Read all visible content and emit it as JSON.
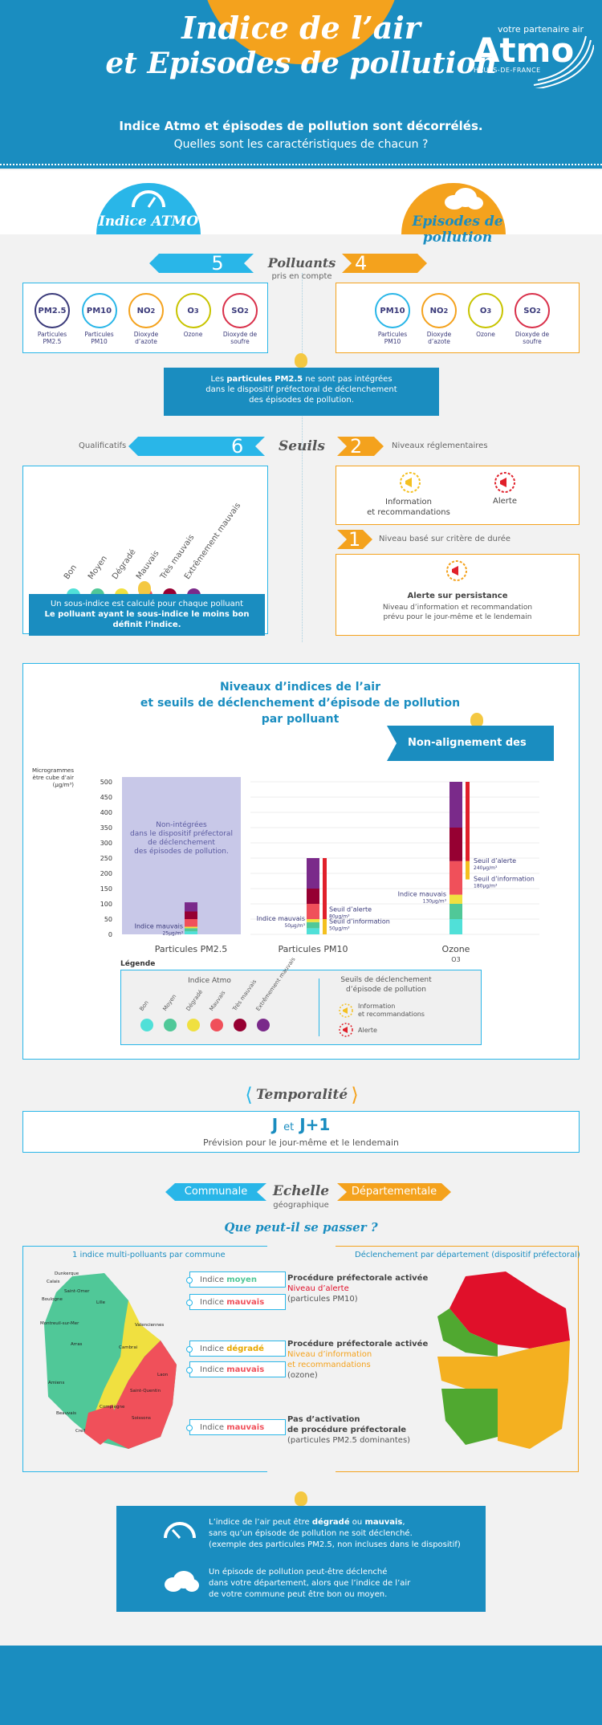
{
  "header": {
    "title_line1": "Indice de l’air",
    "title_line2": "et Episodes de pollution",
    "logo_tag": "votre partenaire air",
    "logo_name": "Atmo",
    "logo_region": "HAUTS-DE-FRANCE",
    "subtitle1": "Indice Atmo et épisodes de pollution sont décorrélés.",
    "subtitle2": "Quelles sont les caractéristiques de chacun ?"
  },
  "tabs": {
    "atmo": "Indice ATMO",
    "episodes": "Episodes de pollution"
  },
  "polluants": {
    "count_atmo": "5",
    "count_episodes": "4",
    "title": "Polluants",
    "subtitle": "pris en compte",
    "atmo_items": [
      {
        "code": "PM2.5",
        "label": "Particules PM2.5",
        "color": "#3a3a7a"
      },
      {
        "code": "PM10",
        "label": "Particules PM10",
        "color": "#29b6e8"
      },
      {
        "code": "NO2",
        "label": "Dioxyde d’azote",
        "color": "#f4a21d"
      },
      {
        "code": "O3",
        "label": "Ozone",
        "color": "#c8c400"
      },
      {
        "code": "SO2",
        "label": "Dioxyde de soufre",
        "color": "#d9304a"
      }
    ],
    "episode_items": [
      {
        "code": "PM10",
        "label": "Particules PM10",
        "color": "#29b6e8"
      },
      {
        "code": "NO2",
        "label": "Dioxyde d’azote",
        "color": "#f4a21d"
      },
      {
        "code": "O3",
        "label": "Ozone",
        "color": "#c8c400"
      },
      {
        "code": "SO2",
        "label": "Dioxyde de soufre",
        "color": "#d9304a"
      }
    ],
    "note_pre": "Les ",
    "note_bold": "particules PM2.5",
    "note_post": " ne sont pas intégrées",
    "note_line2": "dans le dispositif préfectoral de déclenchement",
    "note_line3": "des épisodes de pollution."
  },
  "seuils": {
    "qualif_label": "Qualificatifs",
    "count_atmo": "6",
    "title": "Seuils",
    "count_episodes": "2",
    "reg_label": "Niveaux réglementaires",
    "levels": [
      {
        "label": "Bon",
        "color": "#50e0d8"
      },
      {
        "label": "Moyen",
        "color": "#50c898"
      },
      {
        "label": "Dégradé",
        "color": "#f0e040"
      },
      {
        "label": "Mauvais",
        "color": "#f0505a"
      },
      {
        "label": "Très mauvais",
        "color": "#960032"
      },
      {
        "label": "Extrêmement mauvais",
        "color": "#7a2a8a"
      }
    ],
    "atmo_note1": "Un sous-indice est calculé pour chaque polluant",
    "atmo_note2": "Le polluant ayant le sous-indice le moins bon",
    "atmo_note3": "définit l’indice.",
    "info_label1": "Information",
    "info_label2": "et recommandations",
    "alerte_label": "Alerte",
    "duree_count": "1",
    "duree_label": "Niveau basé sur critère de durée",
    "persistance_title": "Alerte sur persistance",
    "persistance_l1": "Niveau d’information et recommandation",
    "persistance_l2": "prévu pour le jour-même et le lendemain"
  },
  "niveaux": {
    "title1": "Niveaux d’indices de l’air",
    "title2": "et seuils de déclenchement d’épisode de pollution",
    "title3": "par polluant",
    "banner": "Non-alignement des seuils"
  },
  "chart_data": {
    "type": "bar",
    "ylabel": "Microgrammes par mètre cube d’air (µg/m³)",
    "ylim": [
      0,
      500
    ],
    "yticks": [
      0,
      50,
      100,
      150,
      200,
      250,
      300,
      350,
      400,
      450,
      500
    ],
    "categories": [
      "Particules PM2.5",
      "Particules PM10",
      "Ozone"
    ],
    "ozone_sub": "O3",
    "pm25_overlay": [
      "Non-intégrées",
      "dans le dispositif préfectoral",
      "de déclenchement",
      "des épisodes de pollution."
    ],
    "stacks": [
      {
        "name": "Particules PM2.5",
        "segments": [
          10,
          10,
          5,
          25,
          25,
          30
        ]
      },
      {
        "name": "Particules PM10",
        "segments": [
          20,
          20,
          10,
          50,
          50,
          100
        ]
      },
      {
        "name": "Ozone",
        "segments": [
          50,
          50,
          30,
          110,
          110,
          150
        ]
      }
    ],
    "level_colors": [
      "#50e0d8",
      "#50c898",
      "#f0e040",
      "#f0505a",
      "#960032",
      "#7a2a8a"
    ],
    "annotations": {
      "pm25_mauvais": "Indice mauvais",
      "pm25_mauvais_val": "25µg/m³",
      "pm10_mauvais": "Indice mauvais",
      "pm10_mauvais_val": "50µg/m³",
      "pm10_alerte": "Seuil d’alerte",
      "pm10_alerte_val": "80µg/m³",
      "pm10_info": "Seuil d’information",
      "pm10_info_val": "50µg/m³",
      "o3_mauvais": "Indice mauvais",
      "o3_mauvais_val": "130µg/m³",
      "o3_alerte": "Seuil d’alerte",
      "o3_alerte_val": "240µg/m³",
      "o3_info": "Seuil d’information",
      "o3_info_val": "180µg/m³"
    },
    "thresholds": {
      "pm10_info": 50,
      "pm10_alerte": 80,
      "o3_info": 180,
      "o3_alerte": 240
    }
  },
  "legend": {
    "title": "Légende",
    "indice_title": "Indice Atmo",
    "seuils_title1": "Seuils de déclenchement",
    "seuils_title2": "d’épisode de pollution",
    "info1": "Information",
    "info2": "et recommandations",
    "alerte": "Alerte",
    "levels": [
      "Bon",
      "Moyen",
      "Dégradé",
      "Mauvais",
      "Très mauvais",
      "Extrêmement mauvais"
    ]
  },
  "temporalite": {
    "title": "Temporalité",
    "jplus": "J",
    "et": "et",
    "j1": "J+1",
    "desc": "Prévision pour le jour-même et le lendemain"
  },
  "echelle": {
    "communale": "Communale",
    "title": "Echelle",
    "subtitle": "géographique",
    "departementale": "Départementale",
    "question": "Que peut-il se passer ?"
  },
  "maps": {
    "left_title": "1 indice multi-polluants par commune",
    "right_title": "Déclenchement par département (dispositif préfectoral)",
    "cities": [
      "Dunkerque",
      "Calais",
      "Lille",
      "Boulogne",
      "Saint-Omer",
      "Montreuil-sur-Mer",
      "Valenciennes",
      "Arras",
      "Cambrai",
      "Amiens",
      "Saint-Quentin",
      "Beauvais",
      "Compiègne",
      "Laon",
      "Creil",
      "Soissons"
    ],
    "rows": [
      {
        "b1": "Indice ",
        "b1c": "moyen",
        "b1color": "#50c898",
        "b2": "Indice ",
        "b2c": "mauvais",
        "b2color": "#f0505a",
        "proc": "Procédure préfectorale activée",
        "niv": "Niveau d’alerte",
        "niv2": "",
        "nivcolor": "#e0102a",
        "pol": "(particules PM10)"
      },
      {
        "b1": "Indice ",
        "b1c": "dégradé",
        "b1color": "#e8a800",
        "b2": "Indice ",
        "b2c": "mauvais",
        "b2color": "#f0505a",
        "proc": "Procédure préfectorale activée",
        "niv": "Niveau d’information",
        "niv2": "et recommandations",
        "nivcolor": "#f4a21d",
        "pol": "(ozone)"
      },
      {
        "b1": "",
        "b1c": "",
        "b1color": "",
        "b2": "Indice ",
        "b2c": "mauvais",
        "b2color": "#f0505a",
        "proc": "Pas d’activation",
        "niv": "de procédure préfectorale",
        "niv2": "",
        "nivcolor": "#555",
        "pol": "(particules PM2.5 dominantes)"
      }
    ]
  },
  "final": {
    "l1_pre": "L’indice de l’air peut être ",
    "l1_b1": "dégradé",
    "l1_mid": " ou ",
    "l1_b2": "mauvais",
    ",": ",",
    "l2": "sans qu’un épisode de pollution ne soit déclenché.",
    "l3": "(exemple des particules PM2.5, non incluses dans le dispositif)",
    "m1": "Un épisode de pollution peut-être déclenché",
    "m2": "dans votre département, alors que l’indice de l’air",
    "m3": "de votre commune peut être bon ou moyen."
  }
}
